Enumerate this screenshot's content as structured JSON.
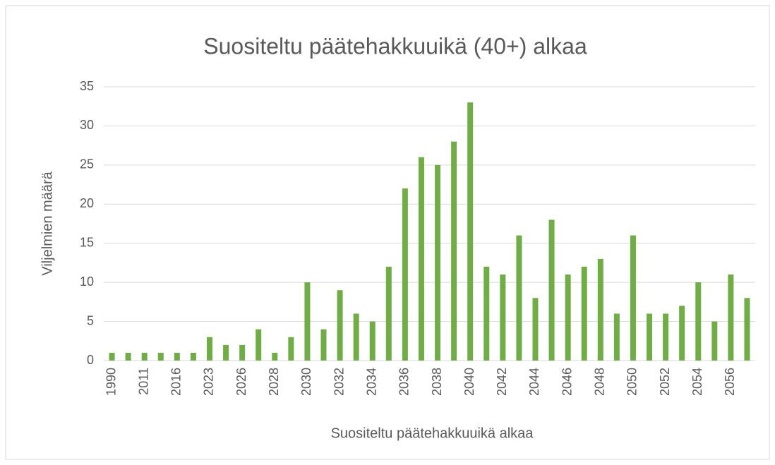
{
  "chart_data": {
    "type": "bar",
    "title": "Suositeltu päätehakkuuikä (40+) alkaa",
    "xlabel": "Suositeltu päätehakkuuikä alkaa",
    "ylabel": "Viljelmien määrä",
    "categories": [
      "1990",
      null,
      "2011",
      null,
      "2016",
      null,
      "2023",
      null,
      "2026",
      null,
      "2028",
      null,
      "2030",
      null,
      "2032",
      null,
      "2034",
      null,
      "2036",
      null,
      "2038",
      null,
      "2040",
      null,
      "2042",
      null,
      "2044",
      null,
      "2046",
      null,
      "2048",
      null,
      "2050",
      null,
      "2052",
      null,
      "2054",
      null,
      "2056",
      null
    ],
    "values": [
      1,
      1,
      1,
      1,
      1,
      1,
      3,
      2,
      2,
      4,
      1,
      3,
      10,
      4,
      9,
      6,
      5,
      12,
      22,
      26,
      25,
      28,
      33,
      12,
      11,
      16,
      8,
      18,
      11,
      12,
      13,
      6,
      16,
      6,
      6,
      7,
      10,
      5,
      11,
      8
    ],
    "color": "#70ad47",
    "ylim": [
      0,
      35
    ],
    "yticks": [
      0,
      5,
      10,
      15,
      20,
      25,
      30,
      35
    ],
    "grid": true
  }
}
